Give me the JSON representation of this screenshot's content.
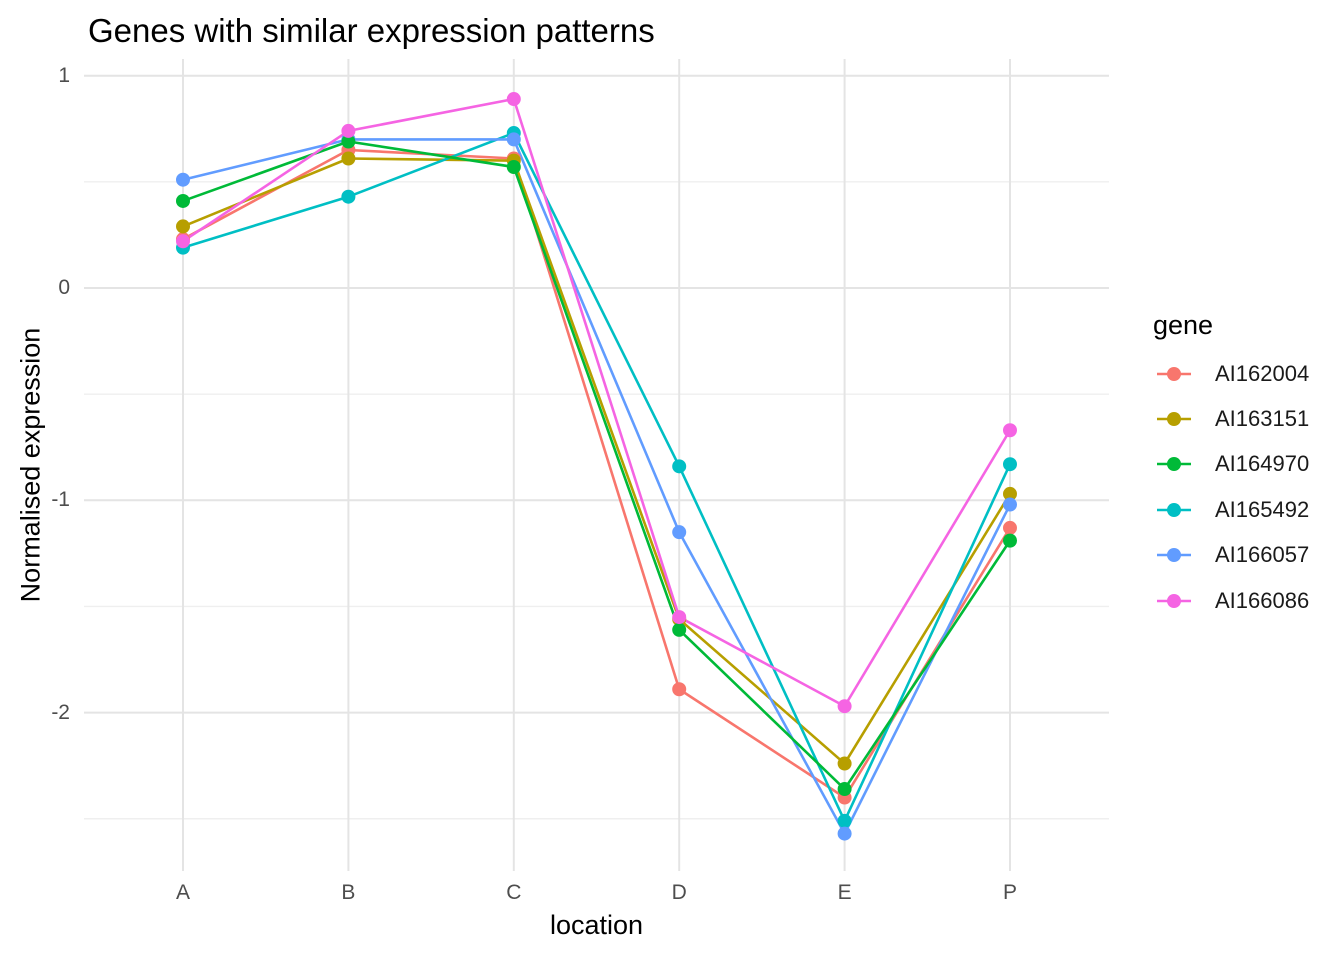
{
  "chart_data": {
    "type": "line",
    "title": "Genes with similar expression patterns",
    "xlabel": "location",
    "ylabel": "Normalised expression",
    "legend_title": "gene",
    "legend_position": "right",
    "grid": true,
    "x_categories": [
      "A",
      "B",
      "C",
      "D",
      "E",
      "P"
    ],
    "ylim": [
      -2.75,
      1.08
    ],
    "y_ticks": [
      {
        "label": "1",
        "value": 1
      },
      {
        "label": "0",
        "value": 0
      },
      {
        "label": "-1",
        "value": -1
      },
      {
        "label": "-2",
        "value": -2
      }
    ],
    "y_major_gridlines": [
      1,
      0,
      -1,
      -2
    ],
    "y_minor_gridlines": [
      0.5,
      -0.5,
      -1.5,
      -2.5
    ],
    "series": [
      {
        "name": "AI162004",
        "color": "#F8766D",
        "values": [
          0.23,
          0.65,
          0.61,
          -1.89,
          -2.4,
          -1.13
        ]
      },
      {
        "name": "AI163151",
        "color": "#B79F00",
        "values": [
          0.29,
          0.61,
          0.6,
          -1.56,
          -2.24,
          -0.97
        ]
      },
      {
        "name": "AI164970",
        "color": "#00BA38",
        "values": [
          0.41,
          0.69,
          0.57,
          -1.61,
          -2.36,
          -1.19
        ]
      },
      {
        "name": "AI165492",
        "color": "#00BFC4",
        "values": [
          0.19,
          0.43,
          0.73,
          -0.84,
          -2.51,
          -0.83
        ]
      },
      {
        "name": "AI166057",
        "color": "#619CFF",
        "values": [
          0.51,
          0.7,
          0.7,
          -1.15,
          -2.57,
          -1.02
        ]
      },
      {
        "name": "AI166086",
        "color": "#F564E3",
        "values": [
          0.22,
          0.74,
          0.89,
          -1.55,
          -1.97,
          -0.67
        ]
      }
    ],
    "gridline_major_color": "#e4e4e4",
    "gridline_minor_color": "#efefef"
  }
}
